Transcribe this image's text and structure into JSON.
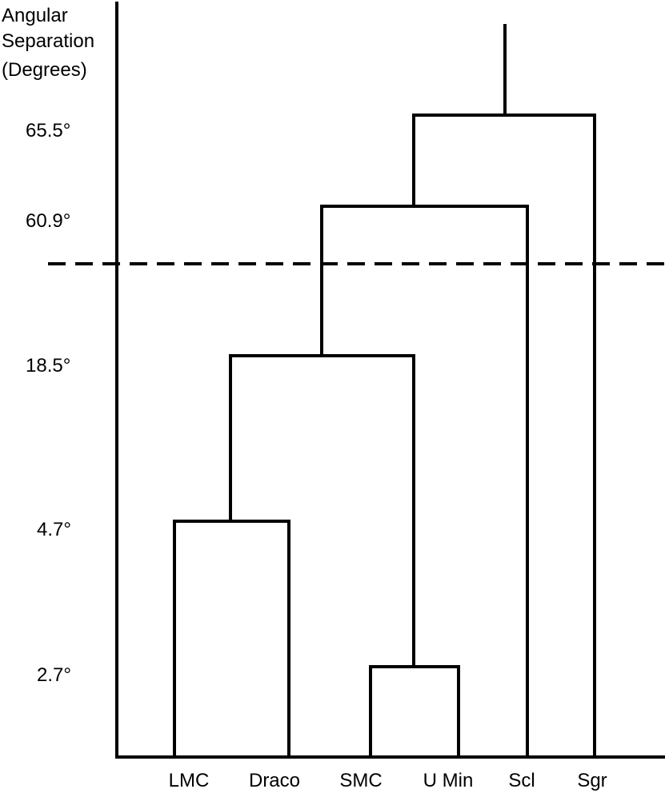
{
  "diagram": {
    "type": "dendrogram",
    "axis_title_lines": [
      "Angular",
      "Separation",
      "(Degrees)"
    ],
    "ticks": [
      "65.5°",
      "60.9°",
      "18.5°",
      "4.7°",
      "2.7°"
    ],
    "leaves": [
      "LMC",
      "Draco",
      "SMC",
      "U Min",
      "Scl",
      "Sgr"
    ],
    "line_color": "#000000"
  }
}
